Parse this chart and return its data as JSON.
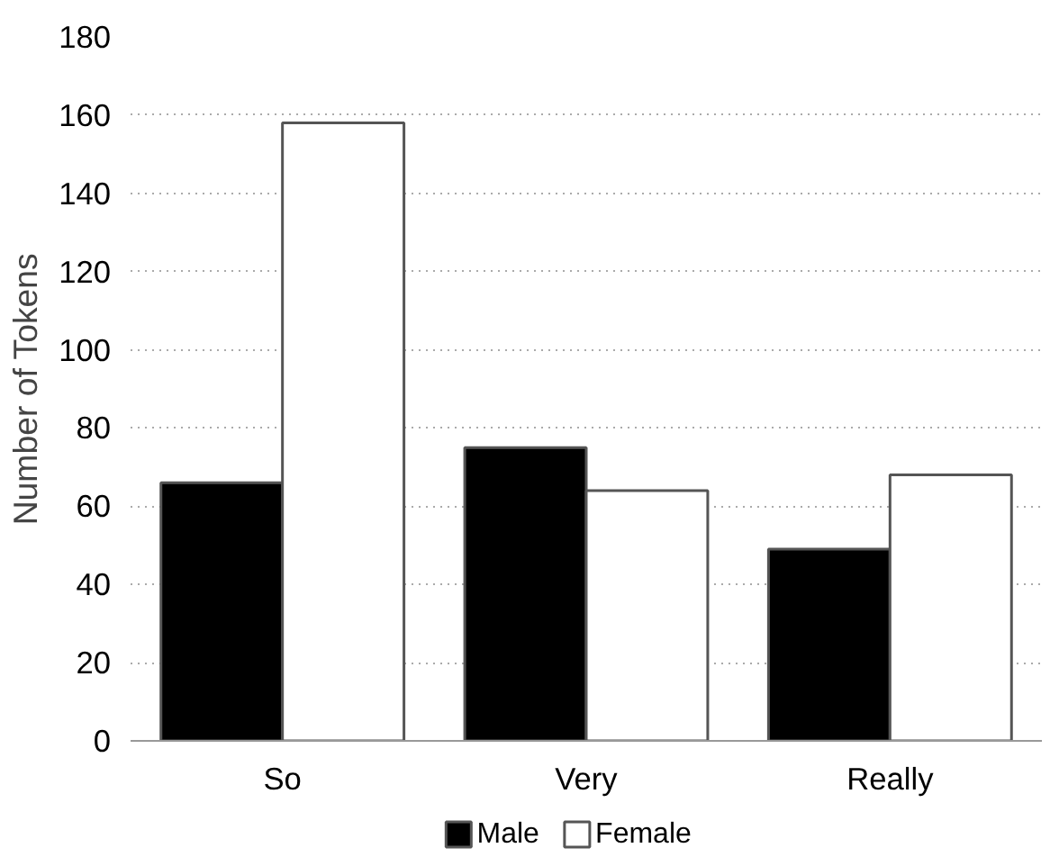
{
  "chart_data": {
    "type": "bar",
    "ylabel": "Number of Tokens",
    "categories": [
      "So",
      "Very",
      "Really"
    ],
    "series": [
      {
        "name": "Male",
        "color": "#000000",
        "values": [
          66,
          75,
          49
        ]
      },
      {
        "name": "Female",
        "color": "#ffffff",
        "values": [
          158,
          64,
          68
        ]
      }
    ],
    "ylim": [
      0,
      180
    ],
    "yticks": [
      0,
      20,
      40,
      60,
      80,
      100,
      120,
      140,
      160,
      180
    ],
    "grid": "y",
    "legend": "bottom"
  }
}
